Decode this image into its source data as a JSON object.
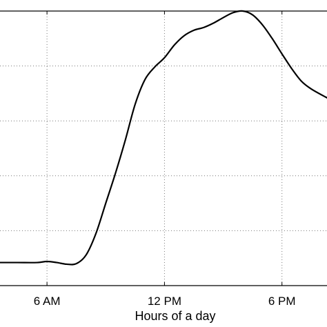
{
  "chart_data": {
    "type": "line",
    "xlabel": "Hours of a day",
    "ylabel": "",
    "title": "",
    "grid": true,
    "line_color": "#000000",
    "x_ticks": [
      {
        "value": 6,
        "label": "6 AM"
      },
      {
        "value": 12,
        "label": "12 PM"
      },
      {
        "value": 18,
        "label": "6 PM"
      }
    ],
    "xlim": [
      3.6,
      20.3
    ],
    "ylim": [
      0,
      5
    ],
    "y_grid_values": [
      1,
      2,
      3,
      4
    ],
    "series": [
      {
        "values": [
          {
            "x": 3.6,
            "y": 0.42
          },
          {
            "x": 4.5,
            "y": 0.42
          },
          {
            "x": 5.5,
            "y": 0.42
          },
          {
            "x": 6.0,
            "y": 0.44
          },
          {
            "x": 6.5,
            "y": 0.42
          },
          {
            "x": 7.0,
            "y": 0.39
          },
          {
            "x": 7.5,
            "y": 0.4
          },
          {
            "x": 8.0,
            "y": 0.56
          },
          {
            "x": 8.5,
            "y": 0.95
          },
          {
            "x": 9.0,
            "y": 1.5
          },
          {
            "x": 9.5,
            "y": 2.05
          },
          {
            "x": 10.0,
            "y": 2.65
          },
          {
            "x": 10.5,
            "y": 3.3
          },
          {
            "x": 11.0,
            "y": 3.75
          },
          {
            "x": 11.5,
            "y": 3.98
          },
          {
            "x": 12.0,
            "y": 4.15
          },
          {
            "x": 12.5,
            "y": 4.38
          },
          {
            "x": 13.0,
            "y": 4.55
          },
          {
            "x": 13.5,
            "y": 4.65
          },
          {
            "x": 14.0,
            "y": 4.7
          },
          {
            "x": 14.5,
            "y": 4.78
          },
          {
            "x": 15.0,
            "y": 4.88
          },
          {
            "x": 15.5,
            "y": 4.97
          },
          {
            "x": 16.0,
            "y": 5.0
          },
          {
            "x": 16.5,
            "y": 4.93
          },
          {
            "x": 17.0,
            "y": 4.75
          },
          {
            "x": 17.5,
            "y": 4.5
          },
          {
            "x": 18.0,
            "y": 4.22
          },
          {
            "x": 18.5,
            "y": 3.95
          },
          {
            "x": 19.0,
            "y": 3.72
          },
          {
            "x": 19.5,
            "y": 3.58
          },
          {
            "x": 20.3,
            "y": 3.42
          }
        ]
      }
    ]
  }
}
